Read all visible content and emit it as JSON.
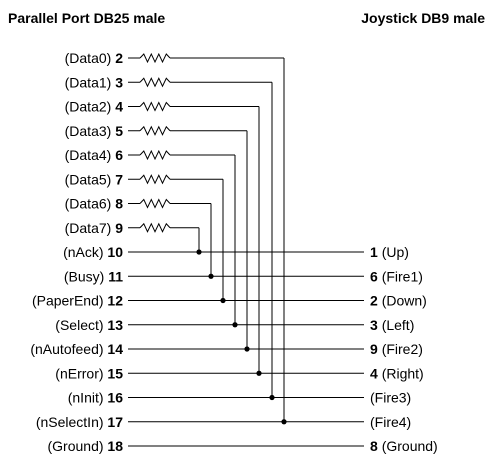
{
  "titles": {
    "left": "Parallel Port DB25 male",
    "right": "Joystick DB9 male"
  },
  "left_pins": [
    {
      "name": "(Data0)",
      "pin": "2",
      "resistor": true
    },
    {
      "name": "(Data1)",
      "pin": "3",
      "resistor": true
    },
    {
      "name": "(Data2)",
      "pin": "4",
      "resistor": true
    },
    {
      "name": "(Data3)",
      "pin": "5",
      "resistor": true
    },
    {
      "name": "(Data4)",
      "pin": "6",
      "resistor": true
    },
    {
      "name": "(Data5)",
      "pin": "7",
      "resistor": true
    },
    {
      "name": "(Data6)",
      "pin": "8",
      "resistor": true
    },
    {
      "name": "(Data7)",
      "pin": "9",
      "resistor": true
    },
    {
      "name": "(nAck)",
      "pin": "10",
      "resistor": false
    },
    {
      "name": "(Busy)",
      "pin": "11",
      "resistor": false
    },
    {
      "name": "(PaperEnd)",
      "pin": "12",
      "resistor": false
    },
    {
      "name": "(Select)",
      "pin": "13",
      "resistor": false
    },
    {
      "name": "(nAutofeed)",
      "pin": "14",
      "resistor": false
    },
    {
      "name": "(nError)",
      "pin": "15",
      "resistor": false
    },
    {
      "name": "(nInit)",
      "pin": "16",
      "resistor": false
    },
    {
      "name": "(nSelectIn)",
      "pin": "17",
      "resistor": false
    },
    {
      "name": "(Ground)",
      "pin": "18",
      "resistor": false
    }
  ],
  "right_pins": [
    {
      "pin": "1",
      "name": "(Up)"
    },
    {
      "pin": "6",
      "name": "(Fire1)"
    },
    {
      "pin": "2",
      "name": "(Down)"
    },
    {
      "pin": "3",
      "name": "(Left)"
    },
    {
      "pin": "9",
      "name": "(Fire2)"
    },
    {
      "pin": "4",
      "name": "(Right)"
    },
    {
      "pin": "",
      "name": "(Fire3)"
    },
    {
      "pin": "",
      "name": "(Fire4)"
    },
    {
      "pin": "8",
      "name": "(Ground)"
    }
  ]
}
